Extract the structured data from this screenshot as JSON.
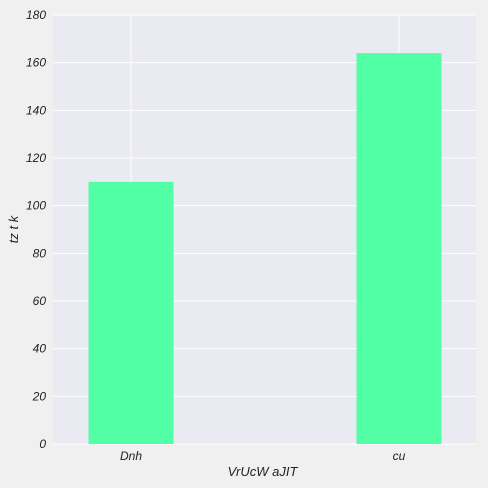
{
  "chart_data": {
    "type": "bar",
    "categories": [
      "Dnh",
      "cu"
    ],
    "values": [
      110,
      164
    ],
    "xlabel": "VrUcW  aJIT",
    "ylabel": "tz t k",
    "ylim": [
      0,
      180
    ],
    "yticks": [
      0,
      20,
      40,
      60,
      80,
      100,
      120,
      140,
      160,
      180
    ],
    "grid": true,
    "colors": {
      "bar": "#52ffa5",
      "plot_background": "#eaeaf2",
      "figure_background": "#f0f0f0",
      "grid": "#ffffff"
    }
  }
}
